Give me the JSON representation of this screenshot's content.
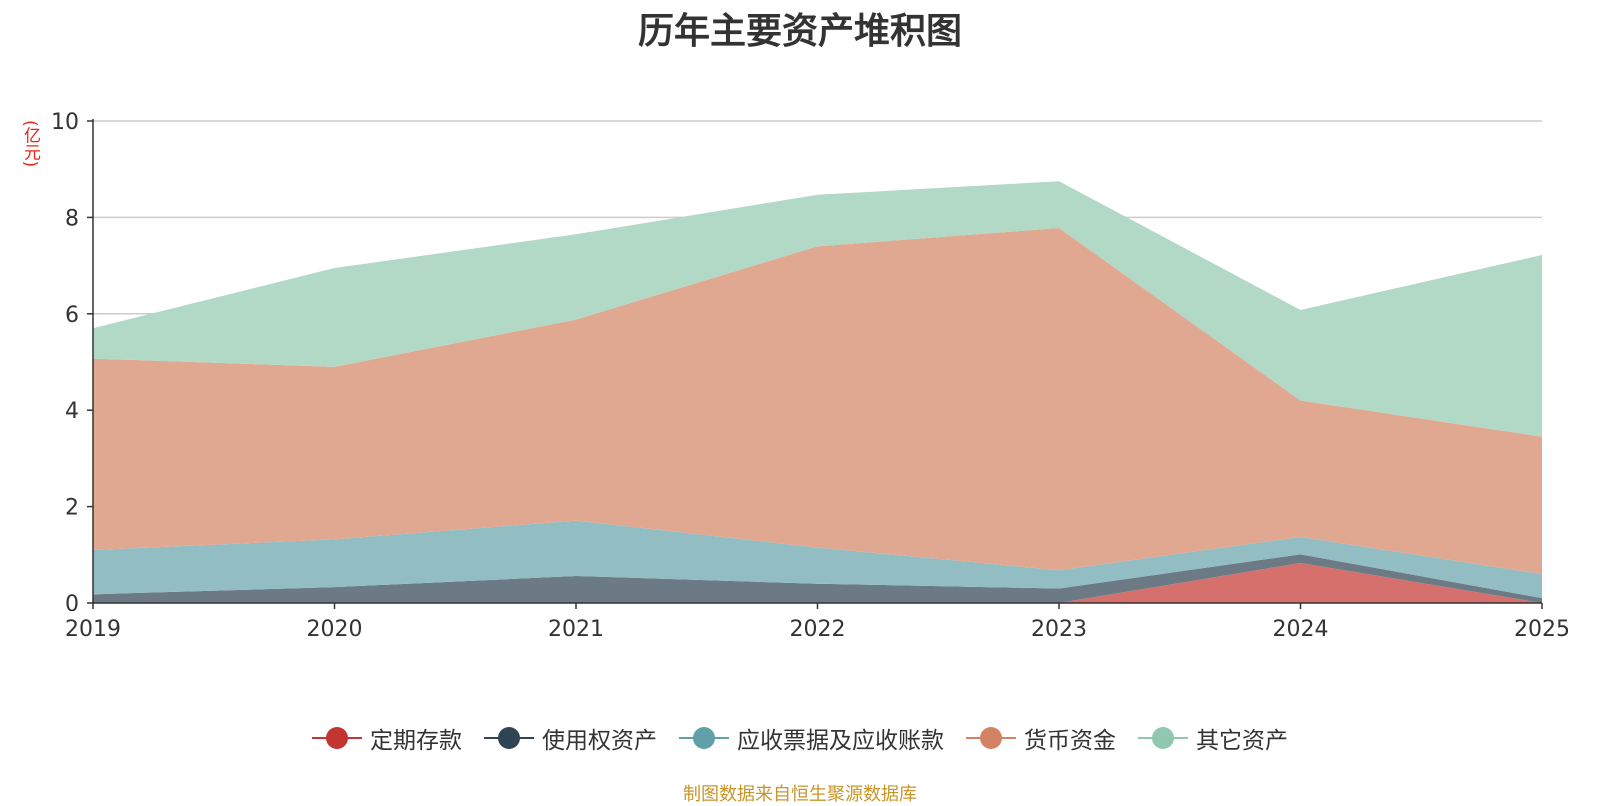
{
  "chart_data": {
    "type": "area",
    "stacked": true,
    "title": "历年主要资产堆积图",
    "ylabel": "(亿元)",
    "xlabel": "",
    "categories": [
      "2019",
      "2020",
      "2021",
      "2022",
      "2023",
      "2024",
      "2025"
    ],
    "ylim": [
      0,
      10
    ],
    "yticks": [
      0,
      2,
      4,
      6,
      8,
      10
    ],
    "grid": true,
    "legend_position": "bottom",
    "series": [
      {
        "name": "定期存款",
        "color": "#c23531",
        "fill": "#d6706c",
        "values": [
          0,
          0,
          0,
          0,
          0,
          0.83,
          0
        ]
      },
      {
        "name": "使用权资产",
        "color": "#2f4554",
        "fill": "#6b7a84",
        "values": [
          0.18,
          0.33,
          0.56,
          0.4,
          0.3,
          0.18,
          0.1
        ]
      },
      {
        "name": "应收票据及应收账款",
        "color": "#61a0a8",
        "fill": "#92bdc2",
        "values": [
          0.92,
          0.99,
          1.15,
          0.75,
          0.38,
          0.36,
          0.5
        ]
      },
      {
        "name": "货币资金",
        "color": "#d48265",
        "fill": "#e0a791",
        "values": [
          3.97,
          3.58,
          4.17,
          6.25,
          7.1,
          2.83,
          2.85
        ]
      },
      {
        "name": "其它资产",
        "color": "#91c7ae",
        "fill": "#b2d8c6",
        "values": [
          0.63,
          2.05,
          1.77,
          1.07,
          0.97,
          1.88,
          3.77
        ]
      }
    ]
  },
  "source_note": "制图数据来自恒生聚源数据库"
}
